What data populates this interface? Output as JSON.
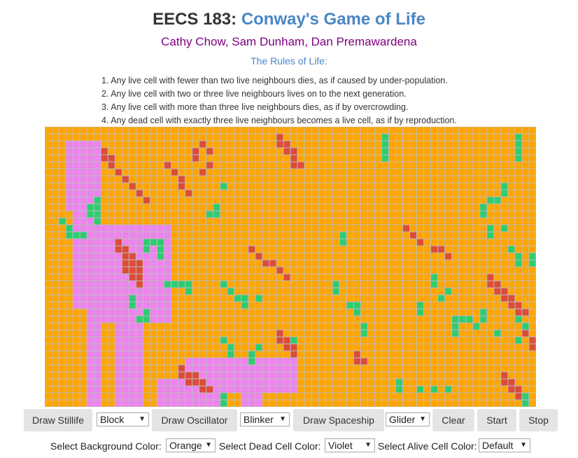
{
  "header": {
    "course": "EECS 183:",
    "title": "Conway's Game of Life",
    "authors": "Cathy Chow, Sam Dunham, Dan Premawardena",
    "rules_heading": "The Rules of Life:"
  },
  "rules": [
    "1. Any live cell with fewer than two live neighbours dies, as if caused by under-population.",
    "2. Any live cell with two or three live neighbours lives on to the next generation.",
    "3. Any live cell with more than three live neighbours dies, as if by overcrowding.",
    "4. Any dead cell with exactly three live neighbours becomes a live cell, as if by reproduction."
  ],
  "board": {
    "cols": 70,
    "rows": 40,
    "colors": {
      "background": "#ffa500",
      "dead": "#ee82ee",
      "alive": "#2ecc71",
      "new": "#dd4b39",
      "grid": "#bdbdbd"
    },
    "regions": {
      "dead": [
        [
          3,
          2,
          5,
          10
        ],
        [
          6,
          24,
          1,
          2
        ],
        [
          9,
          43,
          2,
          3
        ],
        [
          5,
          50,
          5,
          8
        ],
        [
          4,
          8,
          4,
          18
        ],
        [
          8,
          14,
          10,
          14
        ],
        [
          10,
          17,
          4,
          28
        ],
        [
          9,
          51,
          8,
          9
        ],
        [
          3,
          50,
          5,
          10
        ],
        [
          9,
          50,
          3,
          20
        ],
        [
          6,
          19,
          2,
          25
        ],
        [
          20,
          33,
          16,
          5
        ],
        [
          16,
          36,
          9,
          14
        ],
        [
          16,
          42,
          6,
          12
        ],
        [
          22,
          40,
          6,
          6
        ],
        [
          4,
          64,
          3,
          6
        ],
        [
          6,
          54,
          8,
          20
        ],
        [
          0,
          54,
          2,
          18
        ],
        [
          -5,
          68,
          3,
          10
        ],
        [
          24,
          53,
          2,
          4
        ],
        [
          28,
          34,
          3,
          10
        ],
        [
          20,
          62,
          5,
          4
        ]
      ],
      "alive": [
        [
          48,
          1,
          1,
          2
        ],
        [
          48,
          3,
          1,
          2
        ],
        [
          67,
          1,
          1,
          2
        ],
        [
          67,
          3,
          1,
          2
        ],
        [
          7,
          10,
          1,
          1
        ],
        [
          7,
          12,
          1,
          2
        ],
        [
          6,
          11,
          1,
          2
        ],
        [
          23,
          12,
          1,
          1
        ],
        [
          24,
          11,
          1,
          2
        ],
        [
          25,
          8,
          1,
          1
        ],
        [
          2,
          13,
          1,
          1
        ],
        [
          3,
          14,
          1,
          1
        ],
        [
          3,
          15,
          1,
          1
        ],
        [
          4,
          15,
          1,
          1
        ],
        [
          5,
          15,
          1,
          1
        ],
        [
          7,
          11,
          1,
          2
        ],
        [
          42,
          15,
          1,
          2
        ],
        [
          62,
          11,
          1,
          2
        ],
        [
          63,
          10,
          1,
          1
        ],
        [
          64,
          10,
          1,
          1
        ],
        [
          65,
          8,
          1,
          2
        ],
        [
          63,
          14,
          1,
          2
        ],
        [
          65,
          14,
          1,
          1
        ],
        [
          66,
          17,
          1,
          1
        ],
        [
          69,
          18,
          1,
          2
        ],
        [
          67,
          18,
          1,
          2
        ],
        [
          14,
          16,
          1,
          2
        ],
        [
          15,
          16,
          1,
          1
        ],
        [
          16,
          16,
          1,
          1
        ],
        [
          16,
          17,
          1,
          2
        ],
        [
          17,
          22,
          1,
          1
        ],
        [
          18,
          22,
          1,
          1
        ],
        [
          19,
          22,
          1,
          1
        ],
        [
          20,
          22,
          1,
          2
        ],
        [
          25,
          22,
          1,
          1
        ],
        [
          26,
          23,
          1,
          1
        ],
        [
          27,
          24,
          1,
          1
        ],
        [
          28,
          24,
          1,
          2
        ],
        [
          30,
          24,
          1,
          1
        ],
        [
          14,
          26,
          1,
          2
        ],
        [
          12,
          24,
          1,
          2
        ],
        [
          13,
          27,
          1,
          1
        ],
        [
          41,
          22,
          1,
          2
        ],
        [
          43,
          25,
          1,
          1
        ],
        [
          44,
          25,
          1,
          1
        ],
        [
          44,
          26,
          1,
          1
        ],
        [
          45,
          28,
          1,
          2
        ],
        [
          53,
          25,
          1,
          2
        ],
        [
          55,
          21,
          1,
          2
        ],
        [
          56,
          24,
          1,
          1
        ],
        [
          57,
          23,
          1,
          1
        ],
        [
          58,
          27,
          1,
          1
        ],
        [
          59,
          27,
          1,
          1
        ],
        [
          58,
          28,
          1,
          2
        ],
        [
          60,
          27,
          1,
          1
        ],
        [
          61,
          28,
          1,
          1
        ],
        [
          62,
          26,
          1,
          2
        ],
        [
          64,
          29,
          1,
          1
        ],
        [
          25,
          30,
          1,
          1
        ],
        [
          26,
          31,
          1,
          1
        ],
        [
          26,
          32,
          1,
          1
        ],
        [
          29,
          32,
          1,
          2
        ],
        [
          30,
          31,
          1,
          1
        ],
        [
          35,
          30,
          1,
          1
        ],
        [
          50,
          36,
          1,
          2
        ],
        [
          53,
          37,
          1,
          1
        ],
        [
          55,
          37,
          1,
          1
        ],
        [
          57,
          37,
          1,
          1
        ],
        [
          68,
          38,
          1,
          2
        ],
        [
          25,
          38,
          1,
          2
        ],
        [
          67,
          27,
          1,
          1
        ],
        [
          68,
          28,
          1,
          2
        ],
        [
          67,
          30,
          1,
          1
        ]
      ],
      "new": [
        [
          8,
          3,
          1,
          1
        ],
        [
          9,
          4,
          1,
          1
        ],
        [
          8,
          4,
          1,
          1
        ],
        [
          9,
          5,
          1,
          1
        ],
        [
          10,
          6,
          1,
          1
        ],
        [
          11,
          7,
          1,
          1
        ],
        [
          12,
          8,
          1,
          1
        ],
        [
          13,
          9,
          1,
          1
        ],
        [
          14,
          10,
          1,
          1
        ],
        [
          21,
          3,
          1,
          2
        ],
        [
          22,
          2,
          1,
          1
        ],
        [
          23,
          3,
          1,
          1
        ],
        [
          33,
          1,
          1,
          2
        ],
        [
          34,
          2,
          1,
          2
        ],
        [
          35,
          3,
          1,
          3
        ],
        [
          36,
          5,
          1,
          1
        ],
        [
          51,
          14,
          1,
          1
        ],
        [
          52,
          15,
          1,
          1
        ],
        [
          53,
          16,
          1,
          1
        ],
        [
          55,
          17,
          1,
          1
        ],
        [
          56,
          17,
          1,
          1
        ],
        [
          57,
          18,
          1,
          1
        ],
        [
          11,
          17,
          1,
          4
        ],
        [
          12,
          18,
          1,
          4
        ],
        [
          13,
          19,
          1,
          4
        ],
        [
          10,
          16,
          1,
          2
        ],
        [
          29,
          17,
          1,
          1
        ],
        [
          30,
          18,
          1,
          1
        ],
        [
          31,
          19,
          1,
          1
        ],
        [
          32,
          19,
          1,
          1
        ],
        [
          33,
          20,
          1,
          1
        ],
        [
          34,
          21,
          1,
          1
        ],
        [
          63,
          21,
          1,
          2
        ],
        [
          64,
          22,
          1,
          2
        ],
        [
          65,
          23,
          1,
          2
        ],
        [
          66,
          24,
          1,
          2
        ],
        [
          67,
          25,
          1,
          2
        ],
        [
          68,
          26,
          1,
          1
        ],
        [
          19,
          34,
          1,
          2
        ],
        [
          20,
          35,
          1,
          2
        ],
        [
          21,
          35,
          1,
          2
        ],
        [
          22,
          36,
          1,
          2
        ],
        [
          23,
          37,
          1,
          1
        ],
        [
          33,
          29,
          1,
          2
        ],
        [
          34,
          30,
          1,
          2
        ],
        [
          35,
          31,
          1,
          2
        ],
        [
          44,
          32,
          1,
          2
        ],
        [
          45,
          33,
          1,
          1
        ],
        [
          65,
          35,
          1,
          2
        ],
        [
          66,
          36,
          1,
          2
        ],
        [
          67,
          37,
          1,
          2
        ],
        [
          69,
          30,
          1,
          2
        ],
        [
          68,
          29,
          1,
          1
        ],
        [
          17,
          5,
          1,
          1
        ],
        [
          18,
          6,
          1,
          1
        ],
        [
          19,
          7,
          1,
          2
        ],
        [
          20,
          9,
          1,
          1
        ],
        [
          22,
          6,
          1,
          1
        ],
        [
          23,
          5,
          1,
          1
        ]
      ]
    }
  },
  "controls": {
    "draw_stillife": "Draw Stillife",
    "stillife_selected": "Block",
    "draw_oscillator": "Draw Oscillator",
    "oscillator_selected": "Blinker",
    "draw_spaceship": "Draw Spaceship",
    "spaceship_selected": "Glider",
    "clear": "Clear",
    "start": "Start",
    "stop": "Stop"
  },
  "color_controls": {
    "background_label": "Select Background Color:",
    "background_selected": "Orange",
    "dead_label": "Select Dead Cell Color:",
    "dead_selected": "Violet",
    "alive_label": "Select Alive Cell Color:",
    "alive_selected": "Default"
  }
}
